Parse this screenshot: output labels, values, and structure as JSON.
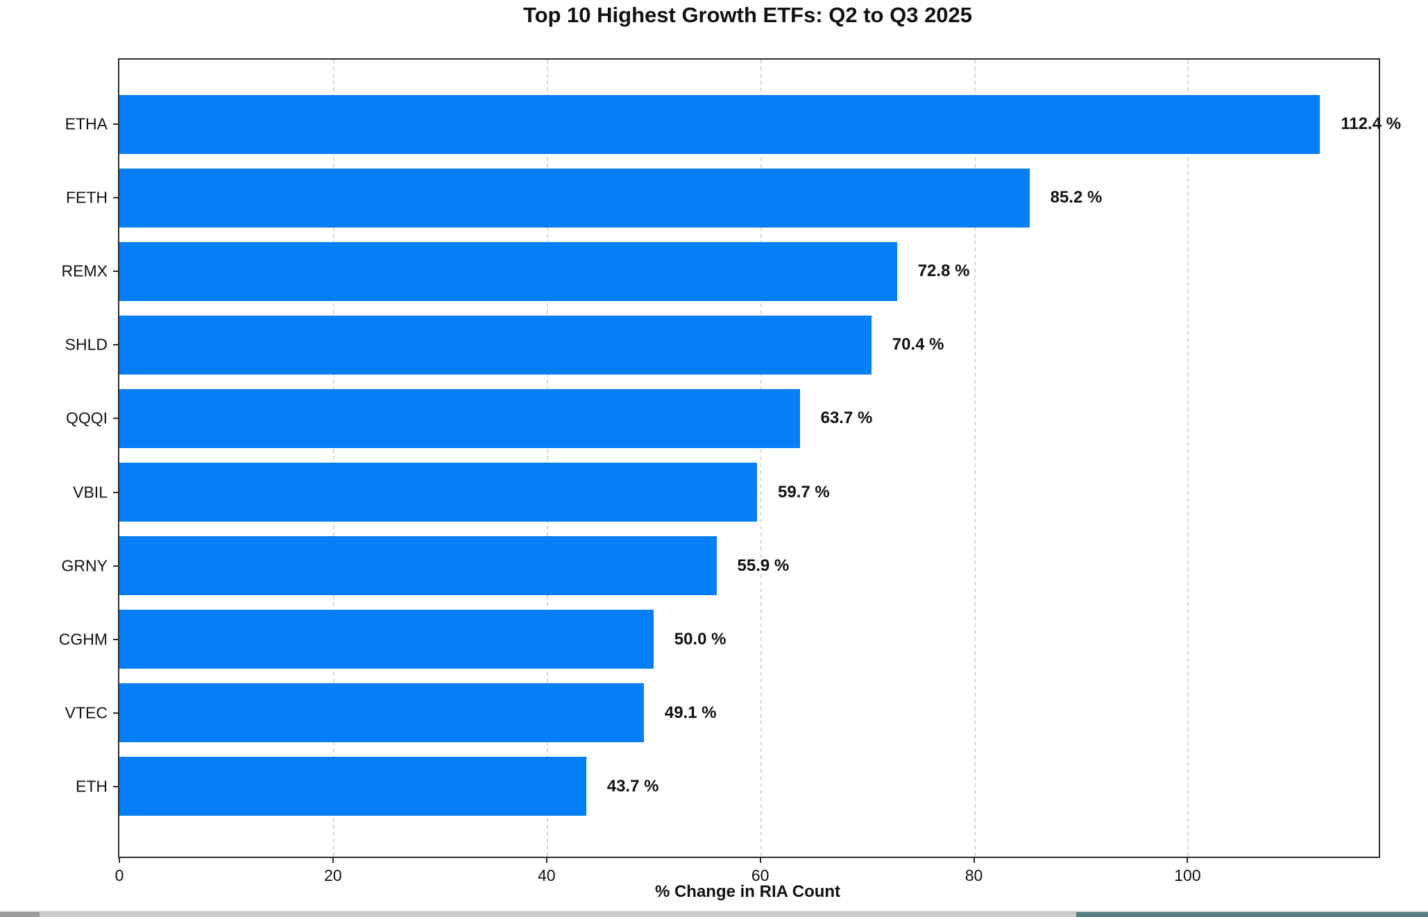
{
  "title": "Top 10 Highest Growth ETFs: Q2 to Q3 2025",
  "chart_data": {
    "type": "bar",
    "orientation": "horizontal",
    "title": "Top 10 Highest Growth ETFs: Q2 to Q3 2025",
    "xlabel": "% Change in RIA Count",
    "ylabel": "",
    "categories": [
      "ETHA",
      "FETH",
      "REMX",
      "SHLD",
      "QQQI",
      "VBIL",
      "GRNY",
      "CGHM",
      "VTEC",
      "ETH"
    ],
    "values": [
      112.4,
      85.2,
      72.8,
      70.4,
      63.7,
      59.7,
      55.9,
      50.0,
      49.1,
      43.7
    ],
    "value_labels": [
      "112.4 %",
      "85.2 %",
      "72.8 %",
      "70.4 %",
      "63.7 %",
      "59.7 %",
      "55.9 %",
      "50.0 %",
      "49.1 %",
      "43.7 %"
    ],
    "xticks": [
      0,
      20,
      40,
      60,
      80,
      100
    ],
    "xtick_labels": [
      "0",
      "20",
      "40",
      "60",
      "80",
      "100"
    ],
    "xlim": [
      0,
      117.9
    ],
    "grid": "vertical-dashed",
    "legend_position": "none",
    "bar_color": "#067ef5",
    "gridline_color": "#d7d7d7",
    "axis_color": "#2b2b2b",
    "text_color": "#111111"
  },
  "window_chrome": {
    "bottom_track_color": "#cccccc",
    "bottom_left_cap_color": "#9b9b9b",
    "bottom_thumb_color": "#577f81"
  }
}
